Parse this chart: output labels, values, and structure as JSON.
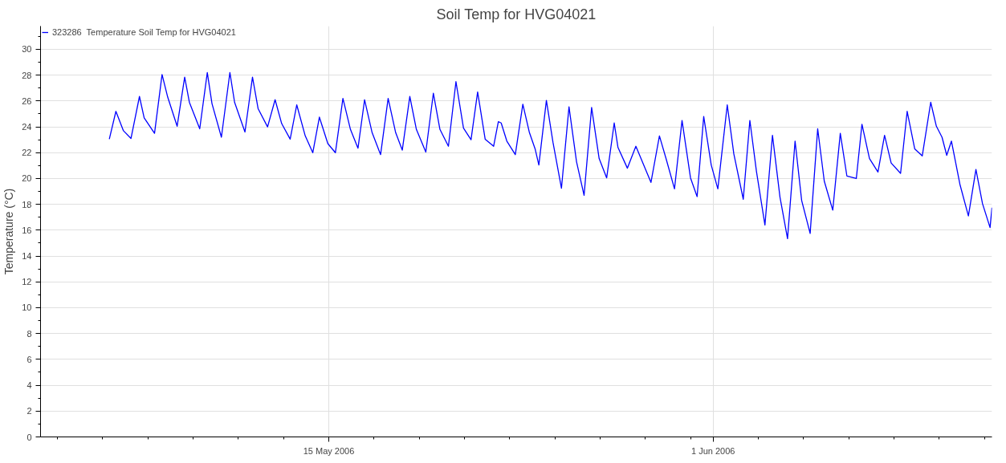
{
  "chart_data": {
    "type": "line",
    "title": "Soil Temp for HVG04021",
    "ylabel": "Temperature (°C)",
    "legend": "top left",
    "grid": true,
    "marker": "none",
    "line_style": "solid",
    "xlim": [
      "2006-05-02T06:00",
      "2006-06-13T08:00"
    ],
    "xticks": [
      {
        "value": "2006-05-03",
        "label": null
      },
      {
        "value": "2006-05-05",
        "label": null
      },
      {
        "value": "2006-05-07",
        "label": null
      },
      {
        "value": "2006-05-09",
        "label": null
      },
      {
        "value": "2006-05-11",
        "label": null
      },
      {
        "value": "2006-05-13",
        "label": null
      },
      {
        "value": "2006-05-15",
        "label": "15 May 2006"
      },
      {
        "value": "2006-05-17",
        "label": null
      },
      {
        "value": "2006-05-19",
        "label": null
      },
      {
        "value": "2006-05-21",
        "label": null
      },
      {
        "value": "2006-05-23",
        "label": null
      },
      {
        "value": "2006-05-25",
        "label": null
      },
      {
        "value": "2006-05-27",
        "label": null
      },
      {
        "value": "2006-05-29",
        "label": null
      },
      {
        "value": "2006-05-31",
        "label": null
      },
      {
        "value": "2006-06-01",
        "label": "1 Jun 2006"
      },
      {
        "value": "2006-06-03",
        "label": null
      },
      {
        "value": "2006-06-05",
        "label": null
      },
      {
        "value": "2006-06-07",
        "label": null
      },
      {
        "value": "2006-06-09",
        "label": null
      },
      {
        "value": "2006-06-11",
        "label": null
      },
      {
        "value": "2006-06-13",
        "label": null
      }
    ],
    "ylim": [
      0,
      31.8
    ],
    "yticks": [
      0,
      {
        "value": 1,
        "label": null
      },
      2,
      {
        "value": 3,
        "label": null
      },
      4,
      {
        "value": 5,
        "label": null
      },
      6,
      {
        "value": 7,
        "label": null
      },
      8,
      {
        "value": 9,
        "label": null
      },
      10,
      {
        "value": 11,
        "label": null
      },
      12,
      {
        "value": 13,
        "label": null
      },
      14,
      {
        "value": 15,
        "label": null
      },
      16,
      {
        "value": 17,
        "label": null
      },
      18,
      {
        "value": 19,
        "label": null
      },
      20,
      {
        "value": 21,
        "label": null
      },
      22,
      {
        "value": 23,
        "label": null
      },
      24,
      {
        "value": 25,
        "label": null
      },
      26,
      {
        "value": 27,
        "label": null
      },
      28,
      {
        "value": 29,
        "label": null
      },
      30,
      {
        "value": 31,
        "label": null
      }
    ],
    "series": [
      {
        "name": "323286  Temperature Soil Temp for HVG04021",
        "color": "#0000ff",
        "x": [
          "2006-05-05T07:00",
          "2006-05-05T14:00",
          "2006-05-05T22:00",
          "2006-05-06T06:00",
          "2006-05-06T15:00",
          "2006-05-06T20:00",
          "2006-05-07T07:00",
          "2006-05-07T15:00",
          "2006-05-07T21:00",
          "2006-05-08T07:00",
          "2006-05-08T15:00",
          "2006-05-08T20:00",
          "2006-05-09T07:00",
          "2006-05-09T15:00",
          "2006-05-09T20:00",
          "2006-05-10T06:00",
          "2006-05-10T15:00",
          "2006-05-10T20:00",
          "2006-05-11T07:00",
          "2006-05-11T15:00",
          "2006-05-11T21:00",
          "2006-05-12T07:00",
          "2006-05-12T15:00",
          "2006-05-12T22:00",
          "2006-05-13T07:00",
          "2006-05-13T14:00",
          "2006-05-13T23:00",
          "2006-05-14T07:00",
          "2006-05-14T14:00",
          "2006-05-14T23:00",
          "2006-05-15T07:00",
          "2006-05-15T15:00",
          "2006-05-15T23:00",
          "2006-05-16T07:00",
          "2006-05-16T14:00",
          "2006-05-16T22:00",
          "2006-05-17T07:00",
          "2006-05-17T15:00",
          "2006-05-17T23:00",
          "2006-05-18T06:00",
          "2006-05-18T14:00",
          "2006-05-18T21:00",
          "2006-05-19T07:00",
          "2006-05-19T15:00",
          "2006-05-19T22:00",
          "2006-05-20T07:00",
          "2006-05-20T15:00",
          "2006-05-20T23:00",
          "2006-05-21T07:00",
          "2006-05-21T14:00",
          "2006-05-21T22:00",
          "2006-05-22T07:00",
          "2006-05-22T12:00",
          "2006-05-22T15:00",
          "2006-05-22T21:00",
          "2006-05-23T06:00",
          "2006-05-23T14:00",
          "2006-05-23T21:00",
          "2006-05-24T03:00",
          "2006-05-24T07:00",
          "2006-05-24T15:00",
          "2006-05-24T22:00",
          "2006-05-25T07:00",
          "2006-05-25T15:00",
          "2006-05-25T23:00",
          "2006-05-26T07:00",
          "2006-05-26T15:00",
          "2006-05-26T23:00",
          "2006-05-27T07:00",
          "2006-05-27T15:00",
          "2006-05-27T19:00",
          "2006-05-28T05:00",
          "2006-05-28T14:00",
          "2006-05-29T06:00",
          "2006-05-29T15:00",
          "2006-05-29T22:00",
          "2006-05-30T07:00",
          "2006-05-30T15:00",
          "2006-05-31T00:00",
          "2006-05-31T07:00",
          "2006-05-31T14:00",
          "2006-05-31T22:00",
          "2006-06-01T05:00",
          "2006-06-01T15:00",
          "2006-06-01T22:00",
          "2006-06-02T08:00",
          "2006-06-02T15:00",
          "2006-06-02T22:00",
          "2006-06-03T07:00",
          "2006-06-03T15:00",
          "2006-06-03T23:00",
          "2006-06-04T07:00",
          "2006-06-04T15:00",
          "2006-06-04T22:00",
          "2006-06-05T07:00",
          "2006-06-05T15:00",
          "2006-06-05T22:00",
          "2006-06-06T07:00",
          "2006-06-06T15:00",
          "2006-06-06T22:00",
          "2006-06-07T08:00",
          "2006-06-07T14:00",
          "2006-06-07T22:00",
          "2006-06-08T07:00",
          "2006-06-08T14:00",
          "2006-06-08T21:00",
          "2006-06-09T07:00",
          "2006-06-09T14:00",
          "2006-06-09T22:00",
          "2006-06-10T06:00",
          "2006-06-10T15:00",
          "2006-06-10T21:00",
          "2006-06-11T03:00",
          "2006-06-11T08:00",
          "2006-06-11T13:00",
          "2006-06-11T22:00",
          "2006-06-12T07:00",
          "2006-06-12T15:00",
          "2006-06-12T22:00",
          "2006-06-13T06:00",
          "2006-06-13T08:00"
        ],
        "values": [
          23.05,
          25.2,
          23.7,
          23.1,
          26.35,
          24.7,
          23.5,
          28.05,
          26.3,
          24.05,
          27.85,
          25.9,
          23.85,
          28.2,
          25.8,
          23.2,
          28.2,
          25.9,
          23.6,
          27.85,
          25.4,
          24.0,
          26.1,
          24.25,
          23.05,
          25.7,
          23.3,
          22.0,
          24.75,
          22.7,
          22.0,
          26.2,
          23.8,
          22.35,
          26.1,
          23.55,
          21.85,
          26.2,
          23.55,
          22.2,
          26.35,
          23.8,
          22.05,
          26.6,
          23.8,
          22.5,
          27.5,
          23.9,
          23.0,
          26.7,
          23.05,
          22.5,
          24.4,
          24.3,
          22.9,
          21.85,
          25.75,
          23.55,
          22.3,
          21.05,
          26.05,
          22.8,
          19.25,
          25.55,
          21.3,
          18.7,
          25.5,
          21.55,
          20.05,
          24.3,
          22.4,
          20.8,
          22.5,
          19.7,
          23.3,
          21.55,
          19.2,
          24.5,
          20.05,
          18.6,
          24.8,
          21.05,
          19.2,
          25.7,
          21.9,
          18.4,
          24.5,
          20.55,
          16.4,
          23.35,
          18.55,
          15.35,
          22.9,
          18.3,
          15.75,
          23.85,
          19.8,
          17.55,
          23.5,
          20.2,
          20.0,
          24.2,
          21.55,
          20.5,
          23.35,
          21.2,
          20.4,
          25.2,
          22.3,
          21.75,
          25.9,
          24.05,
          23.2,
          21.8,
          22.9,
          19.55,
          17.1,
          20.7,
          18.05,
          16.2,
          17.75
        ]
      }
    ]
  }
}
